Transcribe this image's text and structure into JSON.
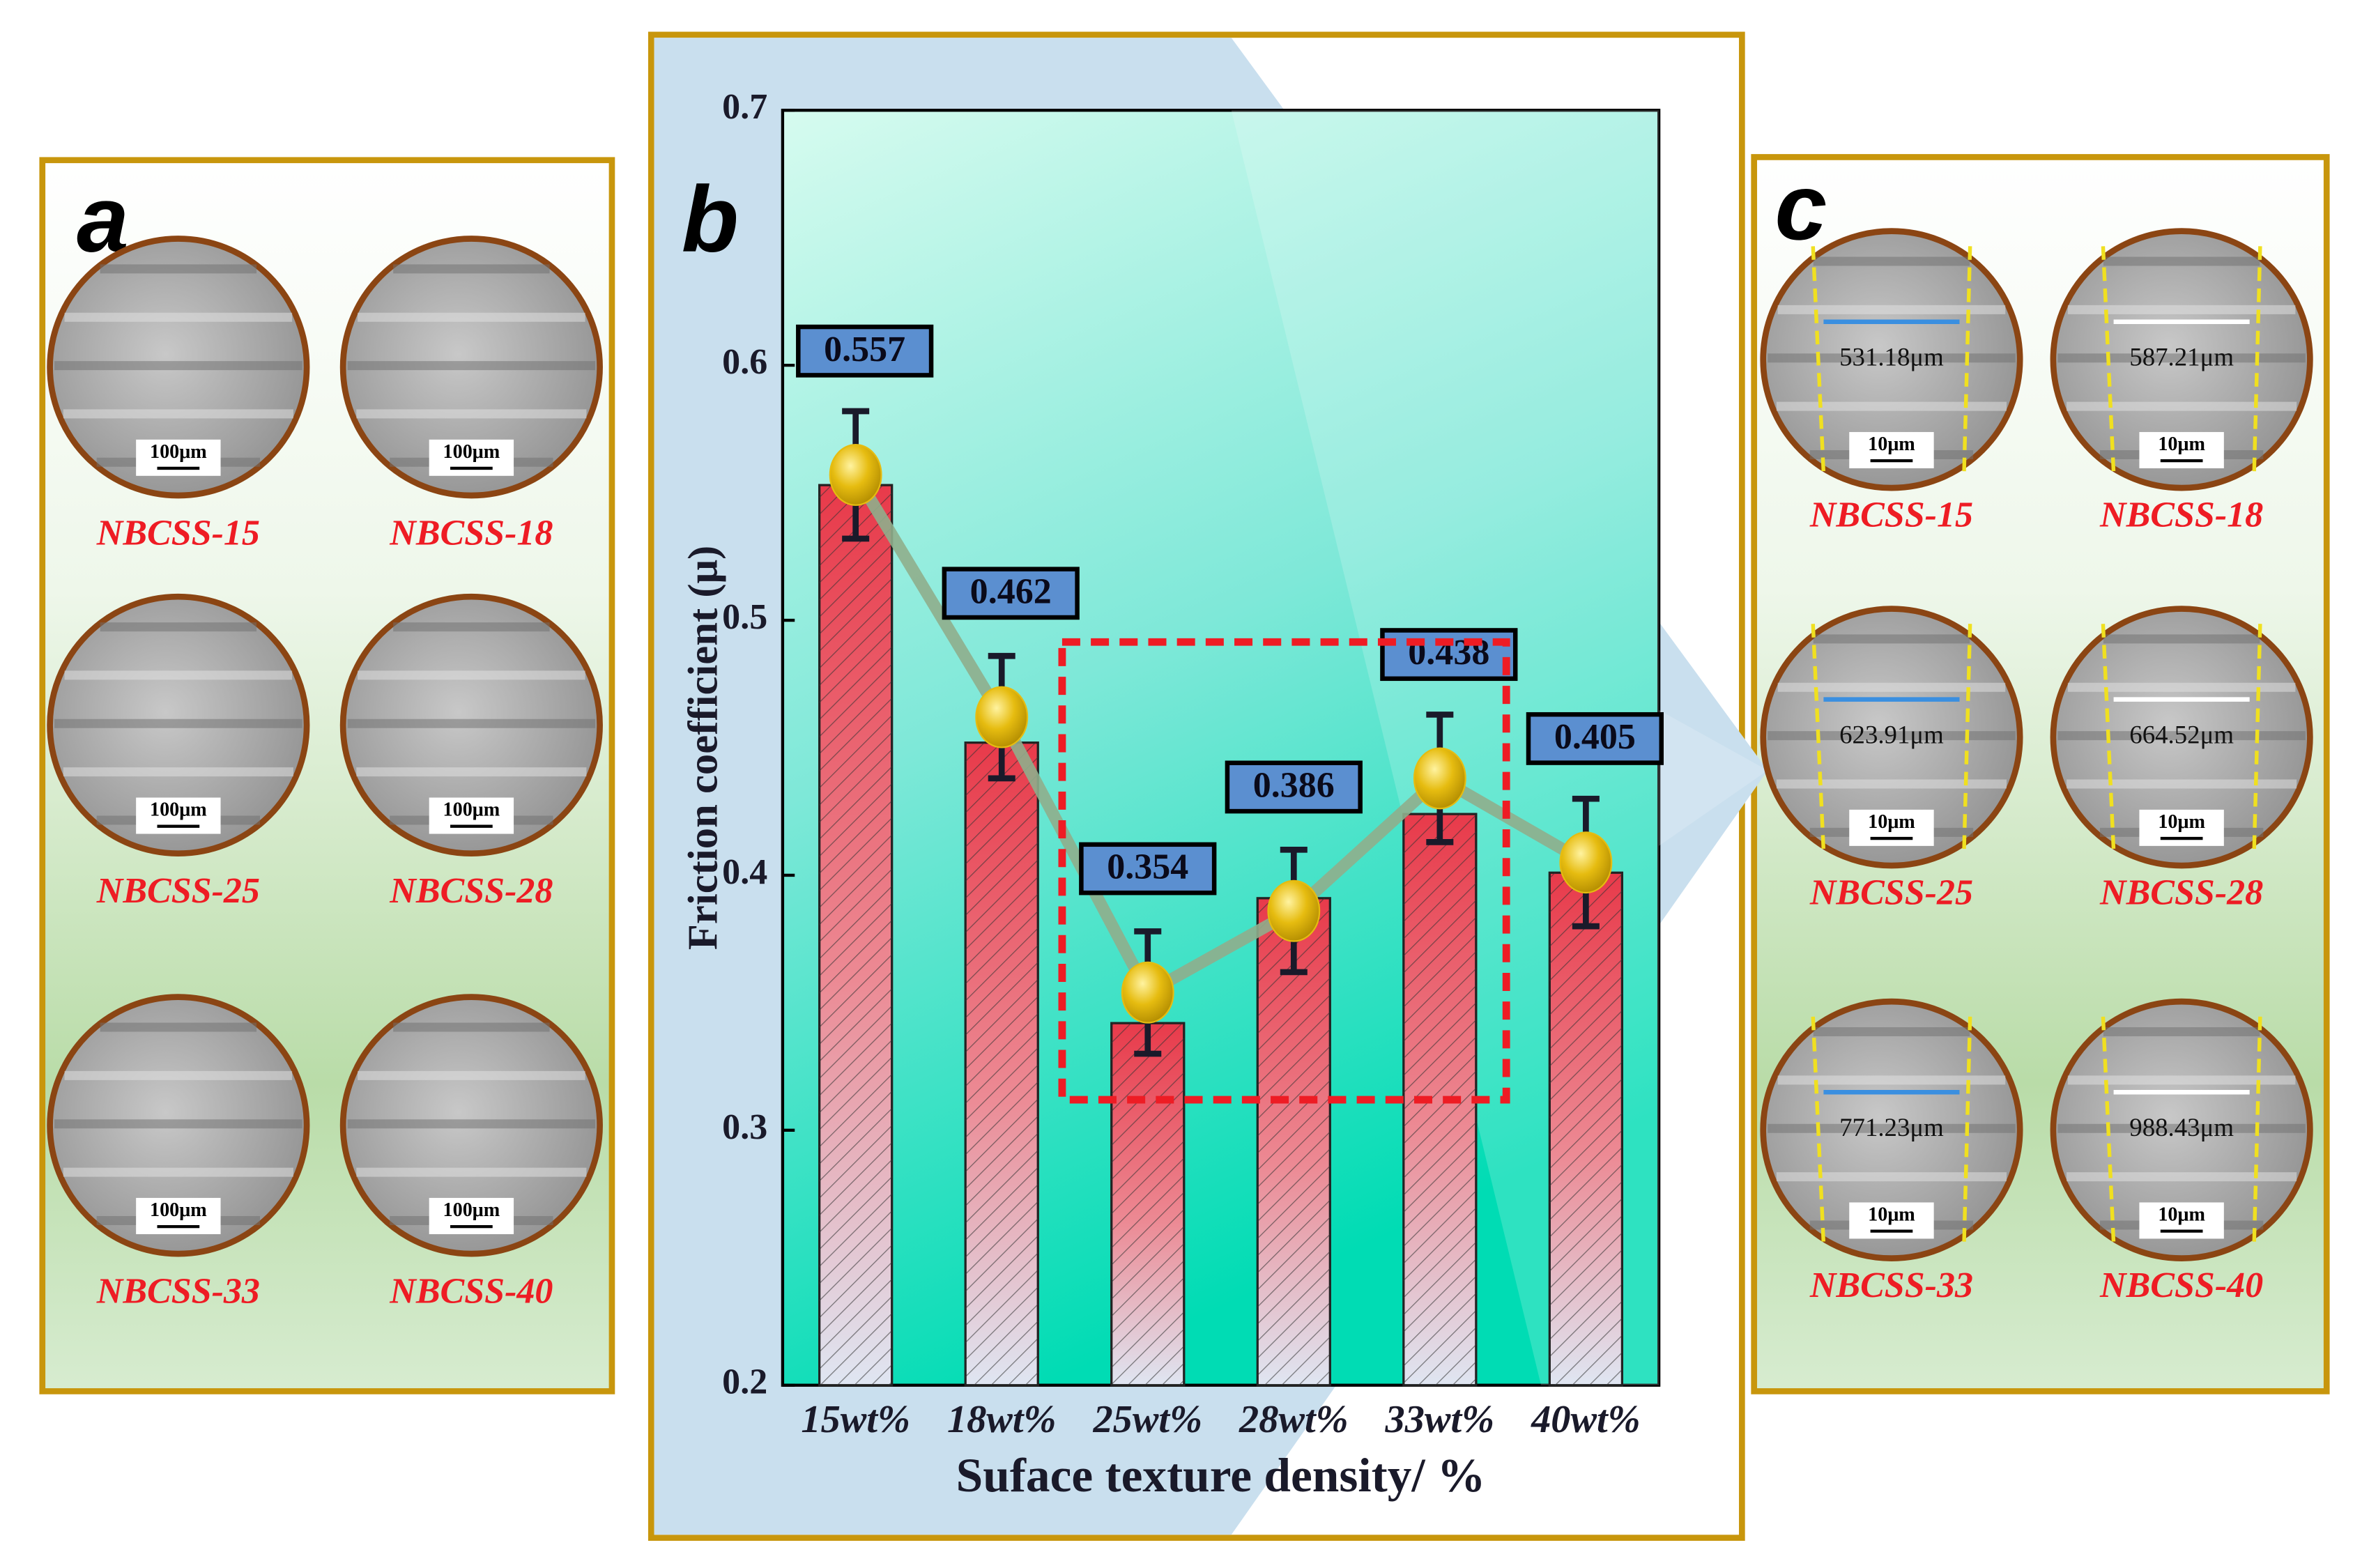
{
  "panel_a": {
    "label": "a",
    "images": [
      {
        "label": "NBCSS-15",
        "scale": "100μm"
      },
      {
        "label": "NBCSS-18",
        "scale": "100μm"
      },
      {
        "label": "NBCSS-25",
        "scale": "100μm"
      },
      {
        "label": "NBCSS-28",
        "scale": "100μm"
      },
      {
        "label": "NBCSS-33",
        "scale": "100μm"
      },
      {
        "label": "NBCSS-40",
        "scale": "100μm"
      }
    ]
  },
  "panel_b": {
    "label": "b"
  },
  "panel_c": {
    "label": "c",
    "images": [
      {
        "label": "NBCSS-15",
        "width": "531.18μm",
        "scale": "10μm"
      },
      {
        "label": "NBCSS-18",
        "width": "587.21μm",
        "scale": "10μm"
      },
      {
        "label": "NBCSS-25",
        "width": "623.91μm",
        "scale": "10μm"
      },
      {
        "label": "NBCSS-28",
        "width": "664.52μm",
        "scale": "10μm"
      },
      {
        "label": "NBCSS-33",
        "width": "771.23μm",
        "scale": "10μm"
      },
      {
        "label": "NBCSS-40",
        "width": "988.43μm",
        "scale": "10μm"
      }
    ]
  },
  "chart_data": {
    "type": "bar",
    "y_label": "Friction coefficient (μ)",
    "x_label": "Suface texture density/ %",
    "categories": [
      "15wt%",
      "18wt%",
      "25wt%",
      "28wt%",
      "33wt%",
      "40wt%"
    ],
    "series": [
      {
        "type": "bar",
        "color": "#e83a4a",
        "values": [
          0.553,
          0.452,
          0.342,
          0.391,
          0.424,
          0.401
        ]
      },
      {
        "type": "line",
        "color": "#8fae8c",
        "marker_color": "#e6bc10",
        "label_color": "#5b8fd0",
        "values": [
          0.557,
          0.462,
          0.354,
          0.386,
          0.438,
          0.405
        ],
        "errors": [
          0.025,
          0.024,
          0.024,
          0.024,
          0.025,
          0.025
        ]
      }
    ],
    "ylim": [
      0.2,
      0.7
    ],
    "yticks": [
      0.2,
      0.3,
      0.4,
      0.5,
      0.6,
      0.7
    ]
  }
}
